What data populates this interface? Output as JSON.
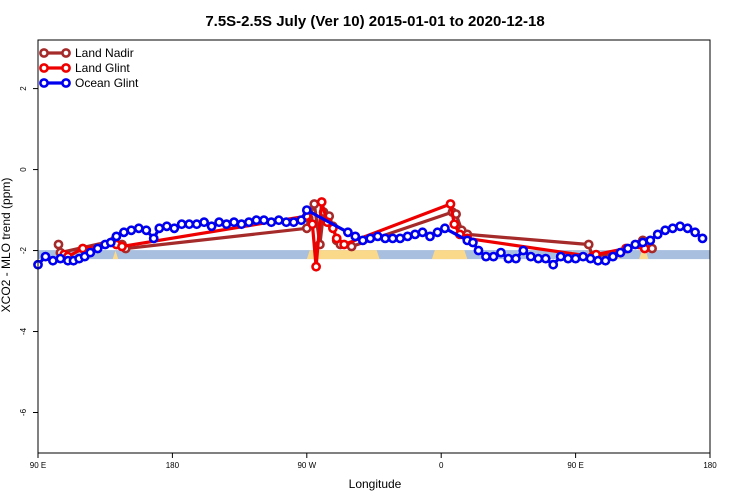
{
  "chart_data": {
    "type": "line",
    "title": "7.5S-2.5S July (Ver 10)   2015-01-01 to 2020-12-18",
    "xlabel": "Longitude",
    "ylabel": "XCO2 - MLO trend (ppm)",
    "xlim": [
      90,
      450
    ],
    "ylim": [
      -7,
      3.2
    ],
    "x_ticks": [
      {
        "value": 90,
        "label": "90 E"
      },
      {
        "value": 162,
        "label": "180"
      },
      {
        "value": 234,
        "label": "90 W"
      },
      {
        "value": 306,
        "label": "0"
      },
      {
        "value": 378,
        "label": "90 E"
      },
      {
        "value": 450,
        "label": "180"
      }
    ],
    "y_ticks": [
      {
        "value": -6,
        "label": "-6"
      },
      {
        "value": -4,
        "label": "-4"
      },
      {
        "value": -2,
        "label": "-2"
      },
      {
        "value": 0,
        "label": "0"
      },
      {
        "value": 2,
        "label": "2"
      }
    ],
    "grid": false,
    "legend_position": "top-left",
    "background_band": {
      "y": -2.1,
      "ocean_color": "#a8bfdf",
      "land_color": "#fbd98a",
      "land_ranges": [
        [
          100,
          106
        ],
        [
          130,
          133
        ],
        [
          234,
          273
        ],
        [
          301,
          320
        ],
        [
          375,
          378
        ],
        [
          398,
          402
        ],
        [
          412,
          417
        ]
      ]
    },
    "series": [
      {
        "name": "Land Nadir",
        "color": "#a52a2a",
        "points": [
          [
            101,
            -1.85
          ],
          [
            102,
            -2.05
          ],
          [
            131,
            -1.75
          ],
          [
            135,
            -1.85
          ],
          [
            137,
            -1.95
          ],
          [
            234,
            -1.45
          ],
          [
            235,
            -1.2
          ],
          [
            238,
            -0.85
          ],
          [
            241,
            -1.85
          ],
          [
            243,
            -1.05
          ],
          [
            246,
            -1.15
          ],
          [
            248,
            -1.4
          ],
          [
            250,
            -1.75
          ],
          [
            252,
            -1.85
          ],
          [
            258,
            -1.9
          ],
          [
            312,
            -1.05
          ],
          [
            314,
            -1.1
          ],
          [
            317,
            -1.5
          ],
          [
            320,
            -1.6
          ],
          [
            385,
            -1.85
          ],
          [
            387,
            -2.15
          ],
          [
            402,
            -2.05
          ],
          [
            414,
            -1.75
          ],
          [
            417,
            -1.8
          ],
          [
            419,
            -1.95
          ]
        ]
      },
      {
        "name": "Land Glint",
        "color": "#ee0000",
        "points": [
          [
            104,
            -2.1
          ],
          [
            106,
            -2.15
          ],
          [
            114,
            -1.95
          ],
          [
            132,
            -1.85
          ],
          [
            135,
            -1.9
          ],
          [
            234,
            -1.15
          ],
          [
            237,
            -1.35
          ],
          [
            239,
            -2.4
          ],
          [
            242,
            -0.8
          ],
          [
            245,
            -1.3
          ],
          [
            248,
            -1.45
          ],
          [
            250,
            -1.7
          ],
          [
            254,
            -1.85
          ],
          [
            311,
            -0.85
          ],
          [
            313,
            -1.35
          ],
          [
            316,
            -1.6
          ],
          [
            320,
            -1.7
          ],
          [
            387,
            -2.15
          ],
          [
            389,
            -2.1
          ],
          [
            405,
            -1.95
          ],
          [
            412,
            -1.85
          ],
          [
            415,
            -1.95
          ]
        ]
      },
      {
        "name": "Ocean Glint",
        "color": "#0000ee",
        "points": [
          [
            90,
            -2.35
          ],
          [
            94,
            -2.15
          ],
          [
            98,
            -2.25
          ],
          [
            102,
            -2.2
          ],
          [
            106,
            -2.25
          ],
          [
            109,
            -2.25
          ],
          [
            112,
            -2.2
          ],
          [
            115,
            -2.15
          ],
          [
            118,
            -2.05
          ],
          [
            122,
            -1.95
          ],
          [
            126,
            -1.85
          ],
          [
            129,
            -1.8
          ],
          [
            132,
            -1.65
          ],
          [
            136,
            -1.55
          ],
          [
            140,
            -1.5
          ],
          [
            144,
            -1.45
          ],
          [
            148,
            -1.5
          ],
          [
            152,
            -1.7
          ],
          [
            155,
            -1.45
          ],
          [
            159,
            -1.4
          ],
          [
            163,
            -1.45
          ],
          [
            167,
            -1.35
          ],
          [
            171,
            -1.35
          ],
          [
            175,
            -1.35
          ],
          [
            179,
            -1.3
          ],
          [
            183,
            -1.4
          ],
          [
            187,
            -1.3
          ],
          [
            191,
            -1.35
          ],
          [
            195,
            -1.3
          ],
          [
            199,
            -1.35
          ],
          [
            203,
            -1.3
          ],
          [
            207,
            -1.25
          ],
          [
            211,
            -1.25
          ],
          [
            215,
            -1.3
          ],
          [
            219,
            -1.25
          ],
          [
            223,
            -1.3
          ],
          [
            227,
            -1.3
          ],
          [
            231,
            -1.25
          ],
          [
            234,
            -1.0
          ],
          [
            256,
            -1.55
          ],
          [
            260,
            -1.65
          ],
          [
            264,
            -1.75
          ],
          [
            268,
            -1.7
          ],
          [
            272,
            -1.65
          ],
          [
            276,
            -1.7
          ],
          [
            280,
            -1.7
          ],
          [
            284,
            -1.7
          ],
          [
            288,
            -1.65
          ],
          [
            292,
            -1.6
          ],
          [
            296,
            -1.55
          ],
          [
            300,
            -1.65
          ],
          [
            304,
            -1.55
          ],
          [
            308,
            -1.45
          ],
          [
            320,
            -1.75
          ],
          [
            323,
            -1.8
          ],
          [
            326,
            -2.0
          ],
          [
            330,
            -2.15
          ],
          [
            334,
            -2.15
          ],
          [
            338,
            -2.05
          ],
          [
            342,
            -2.2
          ],
          [
            346,
            -2.2
          ],
          [
            350,
            -2.0
          ],
          [
            354,
            -2.15
          ],
          [
            358,
            -2.2
          ],
          [
            362,
            -2.2
          ],
          [
            366,
            -2.35
          ],
          [
            370,
            -2.15
          ],
          [
            374,
            -2.2
          ],
          [
            378,
            -2.2
          ],
          [
            382,
            -2.15
          ],
          [
            386,
            -2.2
          ],
          [
            390,
            -2.25
          ],
          [
            394,
            -2.25
          ],
          [
            398,
            -2.15
          ],
          [
            402,
            -2.05
          ],
          [
            406,
            -1.95
          ],
          [
            410,
            -1.85
          ],
          [
            414,
            -1.8
          ],
          [
            418,
            -1.75
          ],
          [
            422,
            -1.6
          ],
          [
            426,
            -1.5
          ],
          [
            430,
            -1.45
          ],
          [
            434,
            -1.4
          ],
          [
            438,
            -1.45
          ],
          [
            442,
            -1.55
          ],
          [
            446,
            -1.7
          ]
        ]
      }
    ]
  }
}
